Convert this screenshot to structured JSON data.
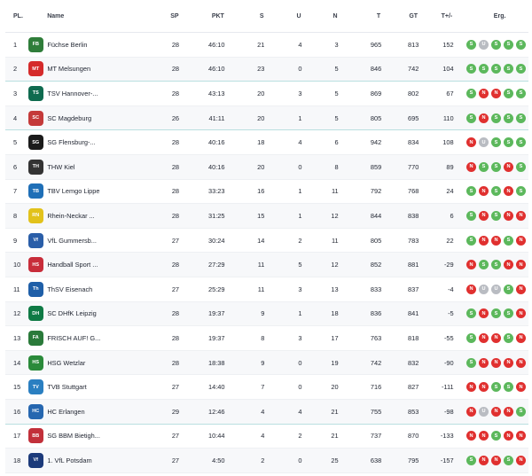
{
  "header": {
    "pl": "PL.",
    "name": "Name",
    "sp": "SP",
    "pkt": "PKT",
    "s": "S",
    "u": "U",
    "n": "N",
    "t": "T",
    "gt": "GT",
    "diff": "T+/-",
    "erg": "Erg."
  },
  "colors": {
    "S": "#5cb85c",
    "U": "#b9bcc2",
    "N": "#e0302f"
  },
  "rows": [
    {
      "pl": "1",
      "name": "Füchse Berlin",
      "sp": "28",
      "pkt": "46:10",
      "s": "21",
      "u": "4",
      "n": "3",
      "t": "965",
      "gt": "813",
      "diff": "152",
      "erg": [
        "S",
        "U",
        "S",
        "S",
        "S"
      ],
      "logo": {
        "icon": "fox-shield-icon",
        "color": "#2f7d3a",
        "abbr": "FB"
      }
    },
    {
      "pl": "2",
      "name": "MT Melsungen",
      "sp": "28",
      "pkt": "46:10",
      "s": "23",
      "u": "0",
      "n": "5",
      "t": "846",
      "gt": "742",
      "diff": "104",
      "erg": [
        "S",
        "S",
        "S",
        "S",
        "S"
      ],
      "logo": {
        "icon": "mt-circle-icon",
        "color": "#d52b2b",
        "abbr": "MT"
      }
    },
    {
      "pl": "3",
      "name": "TSV Hannover-...",
      "sp": "28",
      "pkt": "43:13",
      "s": "20",
      "u": "3",
      "n": "5",
      "t": "869",
      "gt": "802",
      "diff": "67",
      "erg": [
        "S",
        "N",
        "N",
        "S",
        "S"
      ],
      "logo": {
        "icon": "recken-icon",
        "color": "#0f6b4f",
        "abbr": "TSV"
      }
    },
    {
      "pl": "4",
      "name": "SC Magdeburg",
      "sp": "26",
      "pkt": "41:11",
      "s": "20",
      "u": "1",
      "n": "5",
      "t": "805",
      "gt": "695",
      "diff": "110",
      "erg": [
        "S",
        "N",
        "S",
        "S",
        "S"
      ],
      "logo": {
        "icon": "scm-crest-icon",
        "color": "#c43a3a",
        "abbr": "SCM"
      }
    },
    {
      "pl": "5",
      "name": "SG Flensburg-...",
      "sp": "28",
      "pkt": "40:16",
      "s": "18",
      "u": "4",
      "n": "6",
      "t": "942",
      "gt": "834",
      "diff": "108",
      "erg": [
        "N",
        "U",
        "S",
        "S",
        "S"
      ],
      "logo": {
        "icon": "sg-icon",
        "color": "#1b1b1b",
        "abbr": "SG"
      }
    },
    {
      "pl": "6",
      "name": "THW Kiel",
      "sp": "28",
      "pkt": "40:16",
      "s": "20",
      "u": "0",
      "n": "8",
      "t": "859",
      "gt": "770",
      "diff": "89",
      "erg": [
        "N",
        "S",
        "S",
        "N",
        "S"
      ],
      "logo": {
        "icon": "thw-zebra-icon",
        "color": "#333333",
        "abbr": "THW"
      }
    },
    {
      "pl": "7",
      "name": "TBV Lemgo Lippe",
      "sp": "28",
      "pkt": "33:23",
      "s": "16",
      "u": "1",
      "n": "11",
      "t": "792",
      "gt": "768",
      "diff": "24",
      "erg": [
        "S",
        "N",
        "S",
        "N",
        "S"
      ],
      "logo": {
        "icon": "tbv-shield-icon",
        "color": "#1f6fb7",
        "abbr": "TBV"
      }
    },
    {
      "pl": "8",
      "name": "Rhein-Neckar ...",
      "sp": "28",
      "pkt": "31:25",
      "s": "15",
      "u": "1",
      "n": "12",
      "t": "844",
      "gt": "838",
      "diff": "6",
      "erg": [
        "S",
        "N",
        "S",
        "N",
        "N"
      ],
      "logo": {
        "icon": "lion-shield-icon",
        "color": "#e2c21b",
        "abbr": "RNL"
      }
    },
    {
      "pl": "9",
      "name": "VfL Gummersb...",
      "sp": "27",
      "pkt": "30:24",
      "s": "14",
      "u": "2",
      "n": "11",
      "t": "805",
      "gt": "783",
      "diff": "22",
      "erg": [
        "S",
        "N",
        "N",
        "S",
        "N"
      ],
      "logo": {
        "icon": "vfl-circle-icon",
        "color": "#2a5ea8",
        "abbr": "VfL"
      }
    },
    {
      "pl": "10",
      "name": "Handball Sport ...",
      "sp": "28",
      "pkt": "27:29",
      "s": "11",
      "u": "5",
      "n": "12",
      "t": "852",
      "gt": "881",
      "diff": "-29",
      "erg": [
        "N",
        "S",
        "S",
        "N",
        "N"
      ],
      "logo": {
        "icon": "hsv-crest-icon",
        "color": "#c82d3a",
        "abbr": "HSV"
      }
    },
    {
      "pl": "11",
      "name": "ThSV Eisenach",
      "sp": "27",
      "pkt": "25:29",
      "s": "11",
      "u": "3",
      "n": "13",
      "t": "833",
      "gt": "837",
      "diff": "-4",
      "erg": [
        "N",
        "U",
        "U",
        "S",
        "N"
      ],
      "logo": {
        "icon": "thsv-circle-icon",
        "color": "#1f5fa8",
        "abbr": "ThSV"
      }
    },
    {
      "pl": "12",
      "name": "SC DHfK Leipzig",
      "sp": "28",
      "pkt": "19:37",
      "s": "9",
      "u": "1",
      "n": "18",
      "t": "836",
      "gt": "841",
      "diff": "-5",
      "erg": [
        "S",
        "N",
        "S",
        "S",
        "N"
      ],
      "logo": {
        "icon": "dhfk-shield-icon",
        "color": "#0f7a45",
        "abbr": "DHfK"
      }
    },
    {
      "pl": "13",
      "name": "FRISCH AUF! G...",
      "sp": "28",
      "pkt": "19:37",
      "s": "8",
      "u": "3",
      "n": "17",
      "t": "763",
      "gt": "818",
      "diff": "-55",
      "erg": [
        "S",
        "N",
        "N",
        "S",
        "N"
      ],
      "logo": {
        "icon": "frisch-auf-icon",
        "color": "#2a7a3a",
        "abbr": "FA!"
      }
    },
    {
      "pl": "14",
      "name": "HSG Wetzlar",
      "sp": "28",
      "pkt": "18:38",
      "s": "9",
      "u": "0",
      "n": "19",
      "t": "742",
      "gt": "832",
      "diff": "-90",
      "erg": [
        "S",
        "N",
        "N",
        "N",
        "N"
      ],
      "logo": {
        "icon": "hsg-wreath-icon",
        "color": "#2a8a3a",
        "abbr": "HSG"
      }
    },
    {
      "pl": "15",
      "name": "TVB Stuttgart",
      "sp": "27",
      "pkt": "14:40",
      "s": "7",
      "u": "0",
      "n": "20",
      "t": "716",
      "gt": "827",
      "diff": "-111",
      "erg": [
        "N",
        "N",
        "S",
        "S",
        "N"
      ],
      "logo": {
        "icon": "tvb-circle-icon",
        "color": "#2a7fc1",
        "abbr": "TVB"
      }
    },
    {
      "pl": "16",
      "name": "HC Erlangen",
      "sp": "29",
      "pkt": "12:46",
      "s": "4",
      "u": "4",
      "n": "21",
      "t": "755",
      "gt": "853",
      "diff": "-98",
      "erg": [
        "N",
        "U",
        "N",
        "N",
        "S"
      ],
      "logo": {
        "icon": "hce-circle-icon",
        "color": "#2667b0",
        "abbr": "HCE"
      }
    },
    {
      "pl": "17",
      "name": "SG BBM Bietigh...",
      "sp": "27",
      "pkt": "10:44",
      "s": "4",
      "u": "2",
      "n": "21",
      "t": "737",
      "gt": "870",
      "diff": "-133",
      "erg": [
        "N",
        "N",
        "S",
        "N",
        "N"
      ],
      "logo": {
        "icon": "bbm-shield-icon",
        "color": "#c2303a",
        "abbr": "BBM"
      }
    },
    {
      "pl": "18",
      "name": "1. VfL Potsdam",
      "sp": "27",
      "pkt": "4:50",
      "s": "2",
      "u": "0",
      "n": "25",
      "t": "638",
      "gt": "795",
      "diff": "-157",
      "erg": [
        "S",
        "N",
        "N",
        "S",
        "N"
      ],
      "logo": {
        "icon": "eagle-icon",
        "color": "#1c3a7a",
        "abbr": "VfL"
      }
    }
  ]
}
